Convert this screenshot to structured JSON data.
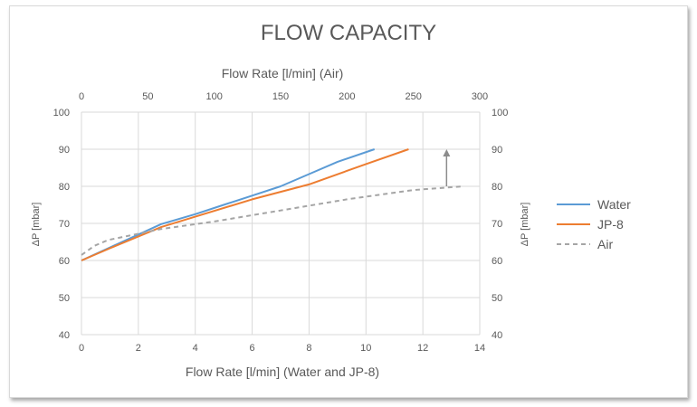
{
  "chart_data": {
    "type": "line",
    "title": "FLOW CAPACITY",
    "xlabel_bottom": "Flow Rate [l/min] (Water and JP-8)",
    "xlabel_top": "Flow Rate [l/min] (Air)",
    "ylabel_left": "ΔP [mbar]",
    "ylabel_right": "ΔP [mbar]",
    "xlim_bottom": [
      0,
      14
    ],
    "xticks_bottom": [
      "0",
      "2",
      "4",
      "6",
      "8",
      "10",
      "12",
      "14"
    ],
    "xlim_top": [
      0,
      300
    ],
    "xticks_top": [
      "0",
      "50",
      "100",
      "150",
      "200",
      "250",
      "300"
    ],
    "ylim": [
      40,
      100
    ],
    "yticks": [
      "40",
      "50",
      "60",
      "70",
      "80",
      "90",
      "100"
    ],
    "grid": true,
    "legend_position": "right",
    "series": [
      {
        "name": "Water",
        "axis": "bottom",
        "color": "#5b9bd5",
        "style": "solid",
        "x": [
          0,
          1,
          2,
          2.8,
          4,
          5,
          6,
          7,
          8,
          9,
          10.3
        ],
        "y": [
          60,
          63.5,
          67,
          69.8,
          72.5,
          75,
          77.5,
          80,
          83.3,
          86.6,
          90
        ]
      },
      {
        "name": "JP-8",
        "axis": "bottom",
        "color": "#ed7d31",
        "style": "solid",
        "x": [
          0,
          1,
          2,
          2.8,
          4,
          6,
          8,
          10,
          11.5
        ],
        "y": [
          60,
          63.3,
          66.5,
          69,
          71.8,
          76.5,
          80.5,
          86,
          90
        ]
      },
      {
        "name": "Air",
        "axis": "top",
        "color": "#a5a5a5",
        "style": "dashed",
        "x": [
          0,
          10,
          20,
          40,
          60,
          100,
          150,
          200,
          250,
          288
        ],
        "y": [
          61.5,
          64,
          65.5,
          67,
          68.5,
          70.5,
          73.5,
          76.5,
          79,
          80
        ]
      }
    ],
    "annotations": [
      {
        "type": "arrow",
        "x_top": 275,
        "y_from": 80,
        "y_to": 90,
        "color": "#8c8c8c"
      }
    ]
  }
}
